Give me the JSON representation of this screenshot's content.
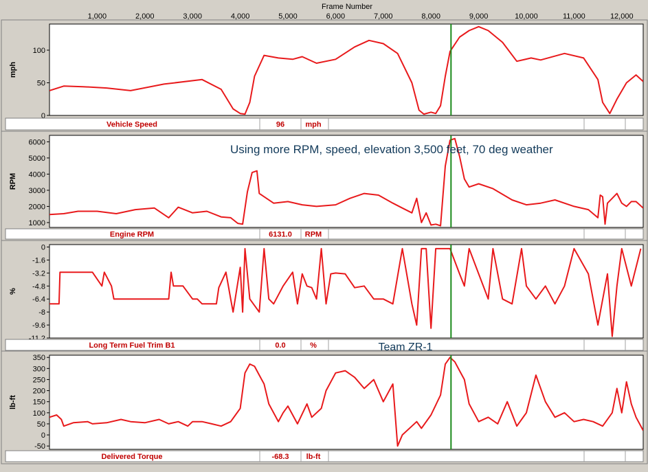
{
  "header": {
    "x_axis_title": "Frame Number"
  },
  "annotations": {
    "rpm_note": "Using more RPM, speed, elevation 3,500 feet, 70 deg weather",
    "team": "Team ZR-1"
  },
  "colors": {
    "trace": "#e8191b",
    "cursor": "#1a8a1a",
    "cursor_alt": "#3a6fd8",
    "note": "#123a5a",
    "label": "#c00000"
  },
  "cursor_frame": 8420,
  "chart_data": [
    {
      "type": "line",
      "ylabel": "mph",
      "xlim": [
        0,
        12450
      ],
      "x_ticks": [
        1000,
        2000,
        3000,
        4000,
        5000,
        6000,
        7000,
        8000,
        9000,
        10000,
        11000,
        12000
      ],
      "x_tick_labels": [
        "1,000",
        "2,000",
        "3,000",
        "4,000",
        "5,000",
        "6,000",
        "7,000",
        "8,000",
        "9,000",
        "10,000",
        "11,000",
        "12,000"
      ],
      "ylim": [
        0,
        140
      ],
      "y_ticks": [
        0,
        50,
        100
      ],
      "y_tick_labels": [
        "0",
        "50",
        "100"
      ],
      "series": [
        {
          "name": "Vehicle Speed",
          "x": [
            0,
            300,
            700,
            1200,
            1700,
            2400,
            3200,
            3600,
            3850,
            4000,
            4100,
            4200,
            4300,
            4500,
            4800,
            5100,
            5300,
            5600,
            6000,
            6400,
            6700,
            7000,
            7300,
            7600,
            7750,
            7850,
            8000,
            8100,
            8200,
            8300,
            8400,
            8600,
            8800,
            9000,
            9200,
            9500,
            9800,
            10100,
            10300,
            10800,
            11200,
            11500,
            11600,
            11750,
            11900,
            12100,
            12300,
            12450
          ],
          "y": [
            38,
            45,
            44,
            42,
            38,
            48,
            55,
            40,
            10,
            3,
            2,
            20,
            60,
            92,
            88,
            86,
            90,
            80,
            86,
            105,
            115,
            110,
            95,
            50,
            8,
            2,
            5,
            3,
            15,
            60,
            98,
            120,
            130,
            136,
            130,
            112,
            83,
            88,
            85,
            95,
            88,
            55,
            20,
            3,
            25,
            50,
            62,
            52
          ]
        }
      ],
      "readout": {
        "label": "Vehicle Speed",
        "value": "96",
        "unit": "mph"
      }
    },
    {
      "type": "line",
      "ylabel": "RPM",
      "xlim": [
        0,
        12450
      ],
      "ylim": [
        700,
        6400
      ],
      "y_ticks": [
        1000,
        2000,
        3000,
        4000,
        5000,
        6000
      ],
      "y_tick_labels": [
        "1000",
        "2000",
        "3000",
        "4000",
        "5000",
        "6000"
      ],
      "series": [
        {
          "name": "Engine RPM",
          "x": [
            0,
            300,
            600,
            1000,
            1400,
            1800,
            2200,
            2500,
            2700,
            3000,
            3300,
            3600,
            3800,
            3950,
            4050,
            4150,
            4250,
            4350,
            4400,
            4500,
            4700,
            5000,
            5300,
            5600,
            6000,
            6300,
            6600,
            6900,
            7200,
            7400,
            7600,
            7700,
            7800,
            7900,
            8000,
            8100,
            8200,
            8300,
            8400,
            8500,
            8600,
            8700,
            8800,
            9000,
            9300,
            9700,
            10000,
            10300,
            10600,
            11000,
            11300,
            11500,
            11550,
            11600,
            11650,
            11700,
            11800,
            11900,
            12000,
            12100,
            12200,
            12300,
            12450
          ],
          "y": [
            1500,
            1550,
            1700,
            1700,
            1550,
            1800,
            1900,
            1300,
            1950,
            1600,
            1700,
            1350,
            1300,
            950,
            900,
            2900,
            4100,
            4200,
            2800,
            2600,
            2200,
            2300,
            2100,
            2000,
            2100,
            2500,
            2800,
            2700,
            2200,
            1900,
            1600,
            2500,
            1000,
            1600,
            850,
            900,
            800,
            4500,
            6100,
            6200,
            5100,
            3700,
            3200,
            3400,
            3100,
            2400,
            2100,
            2200,
            2400,
            2000,
            1800,
            1300,
            2700,
            2600,
            900,
            2200,
            2500,
            2800,
            2200,
            2000,
            2300,
            2300,
            1900
          ]
        }
      ],
      "readout": {
        "label": "Engine RPM",
        "value": "6131.0",
        "unit": "RPM"
      }
    },
    {
      "type": "line",
      "ylabel": "%",
      "xlim": [
        0,
        12450
      ],
      "ylim": [
        -11.2,
        0.3
      ],
      "y_ticks": [
        0,
        -1.6,
        -3.2,
        -4.8,
        -6.4,
        -8,
        -9.6,
        -11.2
      ],
      "y_tick_labels": [
        "0",
        "-1.6",
        "-3.2",
        "-4.8",
        "-6.4",
        "-8",
        "-9.6",
        "-11.2"
      ],
      "series": [
        {
          "name": "Long Term Fuel Trim B1",
          "x": [
            0,
            200,
            220,
            800,
            900,
            1100,
            1150,
            1300,
            1350,
            1500,
            2500,
            2550,
            2600,
            2800,
            3000,
            3100,
            3200,
            3500,
            3550,
            3700,
            3800,
            3850,
            4000,
            4050,
            4100,
            4200,
            4400,
            4500,
            4600,
            4700,
            4900,
            5100,
            5200,
            5300,
            5400,
            5500,
            5600,
            5700,
            5800,
            5900,
            6000,
            6200,
            6400,
            6600,
            6800,
            7000,
            7200,
            7400,
            7600,
            7700,
            7800,
            7900,
            8000,
            8100,
            8200,
            8300,
            8400,
            8600,
            8700,
            8800,
            9000,
            9200,
            9300,
            9500,
            9700,
            9900,
            10000,
            10200,
            10400,
            10600,
            10800,
            11000,
            11300,
            11500,
            11700,
            11800,
            11900,
            12000,
            12200,
            12400
          ],
          "y": [
            -7,
            -7,
            -3.1,
            -3.1,
            -3.1,
            -4.8,
            -3.1,
            -4.8,
            -6.4,
            -6.4,
            -6.4,
            -3.1,
            -4.8,
            -4.8,
            -6.4,
            -6.4,
            -7,
            -7,
            -5,
            -3.1,
            -6.4,
            -8,
            -2.5,
            -8,
            -0.2,
            -6.4,
            -8,
            -0.2,
            -6.4,
            -7,
            -4.8,
            -3.1,
            -7,
            -3.3,
            -4.8,
            -5,
            -6.4,
            -0.2,
            -7,
            -3.3,
            -3.2,
            -3.3,
            -5,
            -4.8,
            -6.4,
            -6.4,
            -7,
            -0.2,
            -7,
            -9.6,
            -0.2,
            -0.2,
            -10,
            -0.2,
            -0.2,
            -0.2,
            -0.2,
            -3.3,
            -4.8,
            -0.2,
            -3.3,
            -6.4,
            -0.2,
            -6.4,
            -7,
            -0.2,
            -4.8,
            -6.4,
            -4.8,
            -7,
            -4.8,
            -0.2,
            -3.3,
            -9.6,
            -3.3,
            -11,
            -4.8,
            -0.2,
            -4.8,
            -0.2
          ]
        }
      ],
      "readout": {
        "label": "Long Term Fuel Trim B1",
        "value": "0.0",
        "unit": "%"
      }
    },
    {
      "type": "line",
      "ylabel": "lb-ft",
      "xlim": [
        0,
        12450
      ],
      "ylim": [
        -65,
        360
      ],
      "y_ticks": [
        -50,
        0,
        50,
        100,
        150,
        200,
        250,
        300,
        350
      ],
      "y_tick_labels": [
        "-50",
        "0",
        "50",
        "100",
        "150",
        "200",
        "250",
        "300",
        "350"
      ],
      "series": [
        {
          "name": "Delivered Torque",
          "x": [
            0,
            150,
            250,
            300,
            500,
            800,
            900,
            1200,
            1500,
            1700,
            2000,
            2300,
            2500,
            2700,
            2900,
            3000,
            3200,
            3400,
            3600,
            3800,
            3900,
            4000,
            4100,
            4200,
            4300,
            4400,
            4500,
            4600,
            4800,
            4900,
            5000,
            5200,
            5400,
            5500,
            5700,
            5800,
            6000,
            6200,
            6400,
            6600,
            6800,
            7000,
            7200,
            7300,
            7400,
            7600,
            7700,
            7800,
            8000,
            8200,
            8300,
            8400,
            8500,
            8600,
            8700,
            8800,
            9000,
            9200,
            9400,
            9600,
            9800,
            10000,
            10200,
            10400,
            10600,
            10800,
            11000,
            11200,
            11400,
            11600,
            11800,
            11900,
            12000,
            12100,
            12200,
            12300,
            12450
          ],
          "y": [
            80,
            90,
            70,
            40,
            55,
            60,
            50,
            55,
            70,
            60,
            55,
            70,
            50,
            60,
            40,
            60,
            60,
            50,
            40,
            60,
            90,
            120,
            280,
            320,
            310,
            270,
            230,
            140,
            60,
            100,
            130,
            50,
            140,
            80,
            120,
            200,
            280,
            290,
            260,
            210,
            250,
            150,
            230,
            -50,
            0,
            40,
            60,
            30,
            90,
            180,
            320,
            350,
            330,
            290,
            250,
            140,
            60,
            80,
            50,
            150,
            40,
            100,
            270,
            150,
            80,
            100,
            60,
            70,
            60,
            40,
            100,
            210,
            100,
            240,
            140,
            80,
            20
          ]
        }
      ],
      "readout": {
        "label": "Delivered Torque",
        "value": "-68.3",
        "unit": "lb-ft"
      }
    }
  ]
}
